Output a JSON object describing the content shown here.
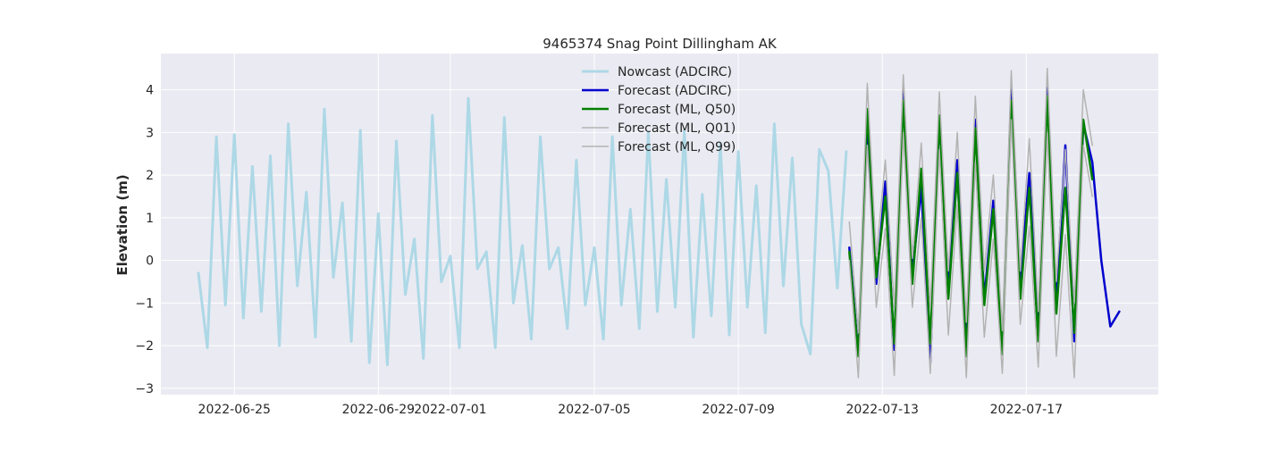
{
  "chart_data": {
    "type": "line",
    "title": "9465374 Snag Point Dillingham AK",
    "xlabel": "",
    "ylabel": "Elevation (m)",
    "xlim": [
      "2022-06-22T23:00",
      "2022-07-20T16:00"
    ],
    "ylim": [
      -3.15,
      4.85
    ],
    "yticks": [
      -3,
      -2,
      -1,
      0,
      1,
      2,
      3,
      4
    ],
    "ytick_labels": [
      "−3",
      "−2",
      "−1",
      "0",
      "1",
      "2",
      "3",
      "4"
    ],
    "xticks": [
      "2022-06-25",
      "2022-06-29",
      "2022-07-01",
      "2022-07-05",
      "2022-07-09",
      "2022-07-13",
      "2022-07-17"
    ],
    "grid": true,
    "background": "#eaeaf2",
    "legend_position": "top-center",
    "series": [
      {
        "name": "Nowcast (ADCIRC)",
        "color": "#add8e6",
        "linewidth": 3,
        "x": [
          "2022-06-24T00:00",
          "2022-06-24T06:00",
          "2022-06-24T12:00",
          "2022-06-24T18:00",
          "2022-06-25T00:00",
          "2022-06-25T06:00",
          "2022-06-25T12:00",
          "2022-06-25T18:00",
          "2022-06-26T00:00",
          "2022-06-26T06:00",
          "2022-06-26T12:00",
          "2022-06-26T18:00",
          "2022-06-27T00:00",
          "2022-06-27T06:00",
          "2022-06-27T12:00",
          "2022-06-27T18:00",
          "2022-06-28T00:00",
          "2022-06-28T06:00",
          "2022-06-28T12:00",
          "2022-06-28T18:00",
          "2022-06-29T00:00",
          "2022-06-29T06:00",
          "2022-06-29T12:00",
          "2022-06-29T18:00",
          "2022-06-30T00:00",
          "2022-06-30T06:00",
          "2022-06-30T12:00",
          "2022-06-30T18:00",
          "2022-07-01T00:00",
          "2022-07-01T06:00",
          "2022-07-01T12:00",
          "2022-07-01T18:00",
          "2022-07-02T00:00",
          "2022-07-02T06:00",
          "2022-07-02T12:00",
          "2022-07-02T18:00",
          "2022-07-03T00:00",
          "2022-07-03T06:00",
          "2022-07-03T12:00",
          "2022-07-03T18:00",
          "2022-07-04T00:00",
          "2022-07-04T06:00",
          "2022-07-04T12:00",
          "2022-07-04T18:00",
          "2022-07-05T00:00",
          "2022-07-05T06:00",
          "2022-07-05T12:00",
          "2022-07-05T18:00",
          "2022-07-06T00:00",
          "2022-07-06T06:00",
          "2022-07-06T12:00",
          "2022-07-06T18:00",
          "2022-07-07T00:00",
          "2022-07-07T06:00",
          "2022-07-07T12:00",
          "2022-07-07T18:00",
          "2022-07-08T00:00",
          "2022-07-08T06:00",
          "2022-07-08T12:00",
          "2022-07-08T18:00",
          "2022-07-09T00:00",
          "2022-07-09T06:00",
          "2022-07-09T12:00",
          "2022-07-09T18:00",
          "2022-07-10T00:00",
          "2022-07-10T06:00",
          "2022-07-10T12:00",
          "2022-07-10T18:00",
          "2022-07-11T00:00",
          "2022-07-11T06:00",
          "2022-07-11T12:00",
          "2022-07-11T18:00",
          "2022-07-12T00:00"
        ],
        "y": [
          -0.3,
          -2.05,
          2.9,
          -1.05,
          2.95,
          -1.35,
          2.2,
          -1.2,
          2.45,
          -2.0,
          3.2,
          -0.6,
          1.6,
          -1.8,
          3.55,
          -0.4,
          1.35,
          -1.9,
          3.05,
          -2.4,
          1.1,
          -2.45,
          2.8,
          -0.8,
          0.5,
          -2.3,
          3.4,
          -0.5,
          0.1,
          -2.05,
          3.8,
          -0.2,
          0.2,
          -2.05,
          3.35,
          -1.0,
          0.35,
          -1.85,
          2.9,
          -0.2,
          0.3,
          -1.6,
          2.35,
          -1.05,
          0.3,
          -1.85,
          2.9,
          -1.05,
          1.2,
          -1.6,
          3.0,
          -1.2,
          1.9,
          -1.1,
          3.05,
          -1.8,
          1.55,
          -1.3,
          2.75,
          -1.75,
          2.55,
          -1.1,
          1.75,
          -1.7,
          3.2,
          -0.6,
          2.4,
          -1.5,
          -2.2,
          2.6,
          2.1,
          -0.65,
          2.55
        ]
      },
      {
        "name": "Forecast (ADCIRC)",
        "color": "#0000cd",
        "linewidth": 2.5,
        "x": [
          "2022-07-12T02:00",
          "2022-07-12T08:00",
          "2022-07-12T14:00",
          "2022-07-12T20:00",
          "2022-07-13T02:00",
          "2022-07-13T08:00",
          "2022-07-13T14:00",
          "2022-07-13T20:00",
          "2022-07-14T02:00",
          "2022-07-14T08:00",
          "2022-07-14T14:00",
          "2022-07-14T20:00",
          "2022-07-15T02:00",
          "2022-07-15T08:00",
          "2022-07-15T14:00",
          "2022-07-15T20:00",
          "2022-07-16T02:00",
          "2022-07-16T08:00",
          "2022-07-16T14:00",
          "2022-07-16T20:00",
          "2022-07-17T02:00",
          "2022-07-17T08:00",
          "2022-07-17T14:00",
          "2022-07-17T20:00",
          "2022-07-18T02:00",
          "2022-07-18T08:00",
          "2022-07-18T14:00",
          "2022-07-18T20:00",
          "2022-07-19T02:00",
          "2022-07-19T08:00",
          "2022-07-19T14:00"
        ],
        "y": [
          0.3,
          -2.2,
          3.3,
          -0.55,
          1.85,
          -2.1,
          4.0,
          -0.3,
          1.7,
          -2.4,
          3.35,
          -0.5,
          2.35,
          -2.0,
          3.3,
          -0.9,
          1.4,
          -2.2,
          4.0,
          -0.5,
          2.05,
          -1.6,
          4.05,
          -0.9,
          2.7,
          -1.9,
          3.2,
          2.3,
          0.0,
          -1.55,
          -1.2
        ]
      },
      {
        "name": "Forecast (ML, Q50)",
        "color": "#008000",
        "linewidth": 2.5,
        "x": [
          "2022-07-12T02:00",
          "2022-07-12T08:00",
          "2022-07-12T14:00",
          "2022-07-12T20:00",
          "2022-07-13T02:00",
          "2022-07-13T08:00",
          "2022-07-13T14:00",
          "2022-07-13T20:00",
          "2022-07-14T02:00",
          "2022-07-14T08:00",
          "2022-07-14T14:00",
          "2022-07-14T20:00",
          "2022-07-15T02:00",
          "2022-07-15T08:00",
          "2022-07-15T14:00",
          "2022-07-15T20:00",
          "2022-07-16T02:00",
          "2022-07-16T08:00",
          "2022-07-16T14:00",
          "2022-07-16T20:00",
          "2022-07-17T02:00",
          "2022-07-17T08:00",
          "2022-07-17T14:00",
          "2022-07-17T20:00",
          "2022-07-18T02:00",
          "2022-07-18T08:00",
          "2022-07-18T14:00",
          "2022-07-18T20:00"
        ],
        "y": [
          0.2,
          -2.25,
          3.55,
          -0.4,
          1.5,
          -1.95,
          3.75,
          -0.55,
          2.15,
          -1.95,
          3.4,
          -0.9,
          2.05,
          -2.25,
          3.1,
          -1.05,
          1.2,
          -2.2,
          3.75,
          -0.9,
          1.7,
          -1.9,
          3.85,
          -1.25,
          1.7,
          -1.7,
          3.3,
          1.9
        ]
      },
      {
        "name": "Forecast (ML, Q01)",
        "color": "#b3b3b3",
        "linewidth": 1.5,
        "x": [
          "2022-07-12T02:00",
          "2022-07-12T08:00",
          "2022-07-12T14:00",
          "2022-07-12T20:00",
          "2022-07-13T02:00",
          "2022-07-13T08:00",
          "2022-07-13T14:00",
          "2022-07-13T20:00",
          "2022-07-14T02:00",
          "2022-07-14T08:00",
          "2022-07-14T14:00",
          "2022-07-14T20:00",
          "2022-07-15T02:00",
          "2022-07-15T08:00",
          "2022-07-15T14:00",
          "2022-07-15T20:00",
          "2022-07-16T02:00",
          "2022-07-16T08:00",
          "2022-07-16T14:00",
          "2022-07-16T20:00",
          "2022-07-17T02:00",
          "2022-07-17T08:00",
          "2022-07-17T14:00",
          "2022-07-17T20:00",
          "2022-07-18T02:00",
          "2022-07-18T08:00",
          "2022-07-18T14:00",
          "2022-07-18T20:00"
        ],
        "y": [
          0.0,
          -2.75,
          2.7,
          -1.1,
          0.75,
          -2.7,
          3.0,
          -1.1,
          1.0,
          -2.65,
          2.6,
          -1.75,
          1.3,
          -2.75,
          2.3,
          -1.8,
          0.5,
          -2.65,
          3.3,
          -1.5,
          0.8,
          -2.5,
          3.0,
          -2.25,
          0.6,
          -2.75,
          2.7,
          1.5
        ]
      },
      {
        "name": "Forecast (ML, Q99)",
        "color": "#b3b3b3",
        "linewidth": 1.5,
        "x": [
          "2022-07-12T02:00",
          "2022-07-12T08:00",
          "2022-07-12T14:00",
          "2022-07-12T20:00",
          "2022-07-13T02:00",
          "2022-07-13T08:00",
          "2022-07-13T14:00",
          "2022-07-13T20:00",
          "2022-07-14T02:00",
          "2022-07-14T08:00",
          "2022-07-14T14:00",
          "2022-07-14T20:00",
          "2022-07-15T02:00",
          "2022-07-15T08:00",
          "2022-07-15T14:00",
          "2022-07-15T20:00",
          "2022-07-16T02:00",
          "2022-07-16T08:00",
          "2022-07-16T14:00",
          "2022-07-16T20:00",
          "2022-07-17T02:00",
          "2022-07-17T08:00",
          "2022-07-17T14:00",
          "2022-07-17T20:00",
          "2022-07-18T02:00",
          "2022-07-18T08:00",
          "2022-07-18T14:00",
          "2022-07-18T20:00"
        ],
        "y": [
          0.9,
          -1.7,
          4.15,
          0.1,
          2.35,
          -1.1,
          4.35,
          0.05,
          2.75,
          -1.1,
          3.95,
          -0.25,
          3.0,
          -1.45,
          3.85,
          -0.25,
          2.0,
          -1.65,
          4.45,
          -0.25,
          2.85,
          -1.2,
          4.5,
          -0.5,
          2.6,
          -1.0,
          4.0,
          2.7
        ]
      }
    ]
  }
}
